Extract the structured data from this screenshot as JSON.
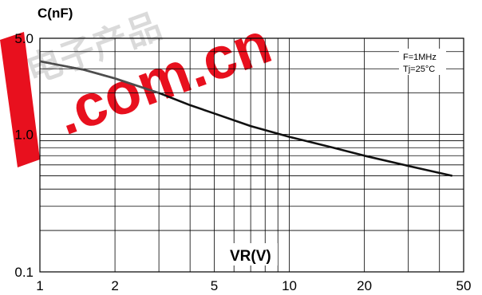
{
  "chart_data": {
    "type": "line",
    "xscale": "log",
    "yscale": "log",
    "xlim": [
      1,
      50
    ],
    "ylim": [
      0.1,
      5.0
    ],
    "x_ticks": [
      {
        "value": 1,
        "label": "1"
      },
      {
        "value": 2,
        "label": "2"
      },
      {
        "value": 5,
        "label": "5"
      },
      {
        "value": 10,
        "label": "10"
      },
      {
        "value": 20,
        "label": "20"
      },
      {
        "value": 50,
        "label": "50"
      }
    ],
    "y_ticks": [
      {
        "value": 5.0,
        "label": "5.0"
      },
      {
        "value": 1.0,
        "label": "1.0"
      },
      {
        "value": 0.1,
        "label": "0.1"
      }
    ],
    "ylabel": "C(nF)",
    "xlabel": "VR(V)",
    "grid": true,
    "annotations": [
      "F=1MHz",
      "Tj=25°C"
    ],
    "series": [
      {
        "x": [
          1,
          1.5,
          2,
          3,
          4,
          5,
          7,
          10,
          15,
          20,
          30,
          45
        ],
        "y": [
          3.4,
          2.95,
          2.55,
          2.0,
          1.63,
          1.42,
          1.15,
          0.96,
          0.8,
          0.7,
          0.59,
          0.5
        ]
      }
    ],
    "colors": {
      "line": "#111111",
      "grid": "#000000",
      "line_faded": "#777777"
    }
  },
  "watermark": {
    "text": ".com.cn",
    "prefix": "电子产品",
    "colors": {
      "red": "#e8101e",
      "grey": "#c9c9c9"
    }
  }
}
